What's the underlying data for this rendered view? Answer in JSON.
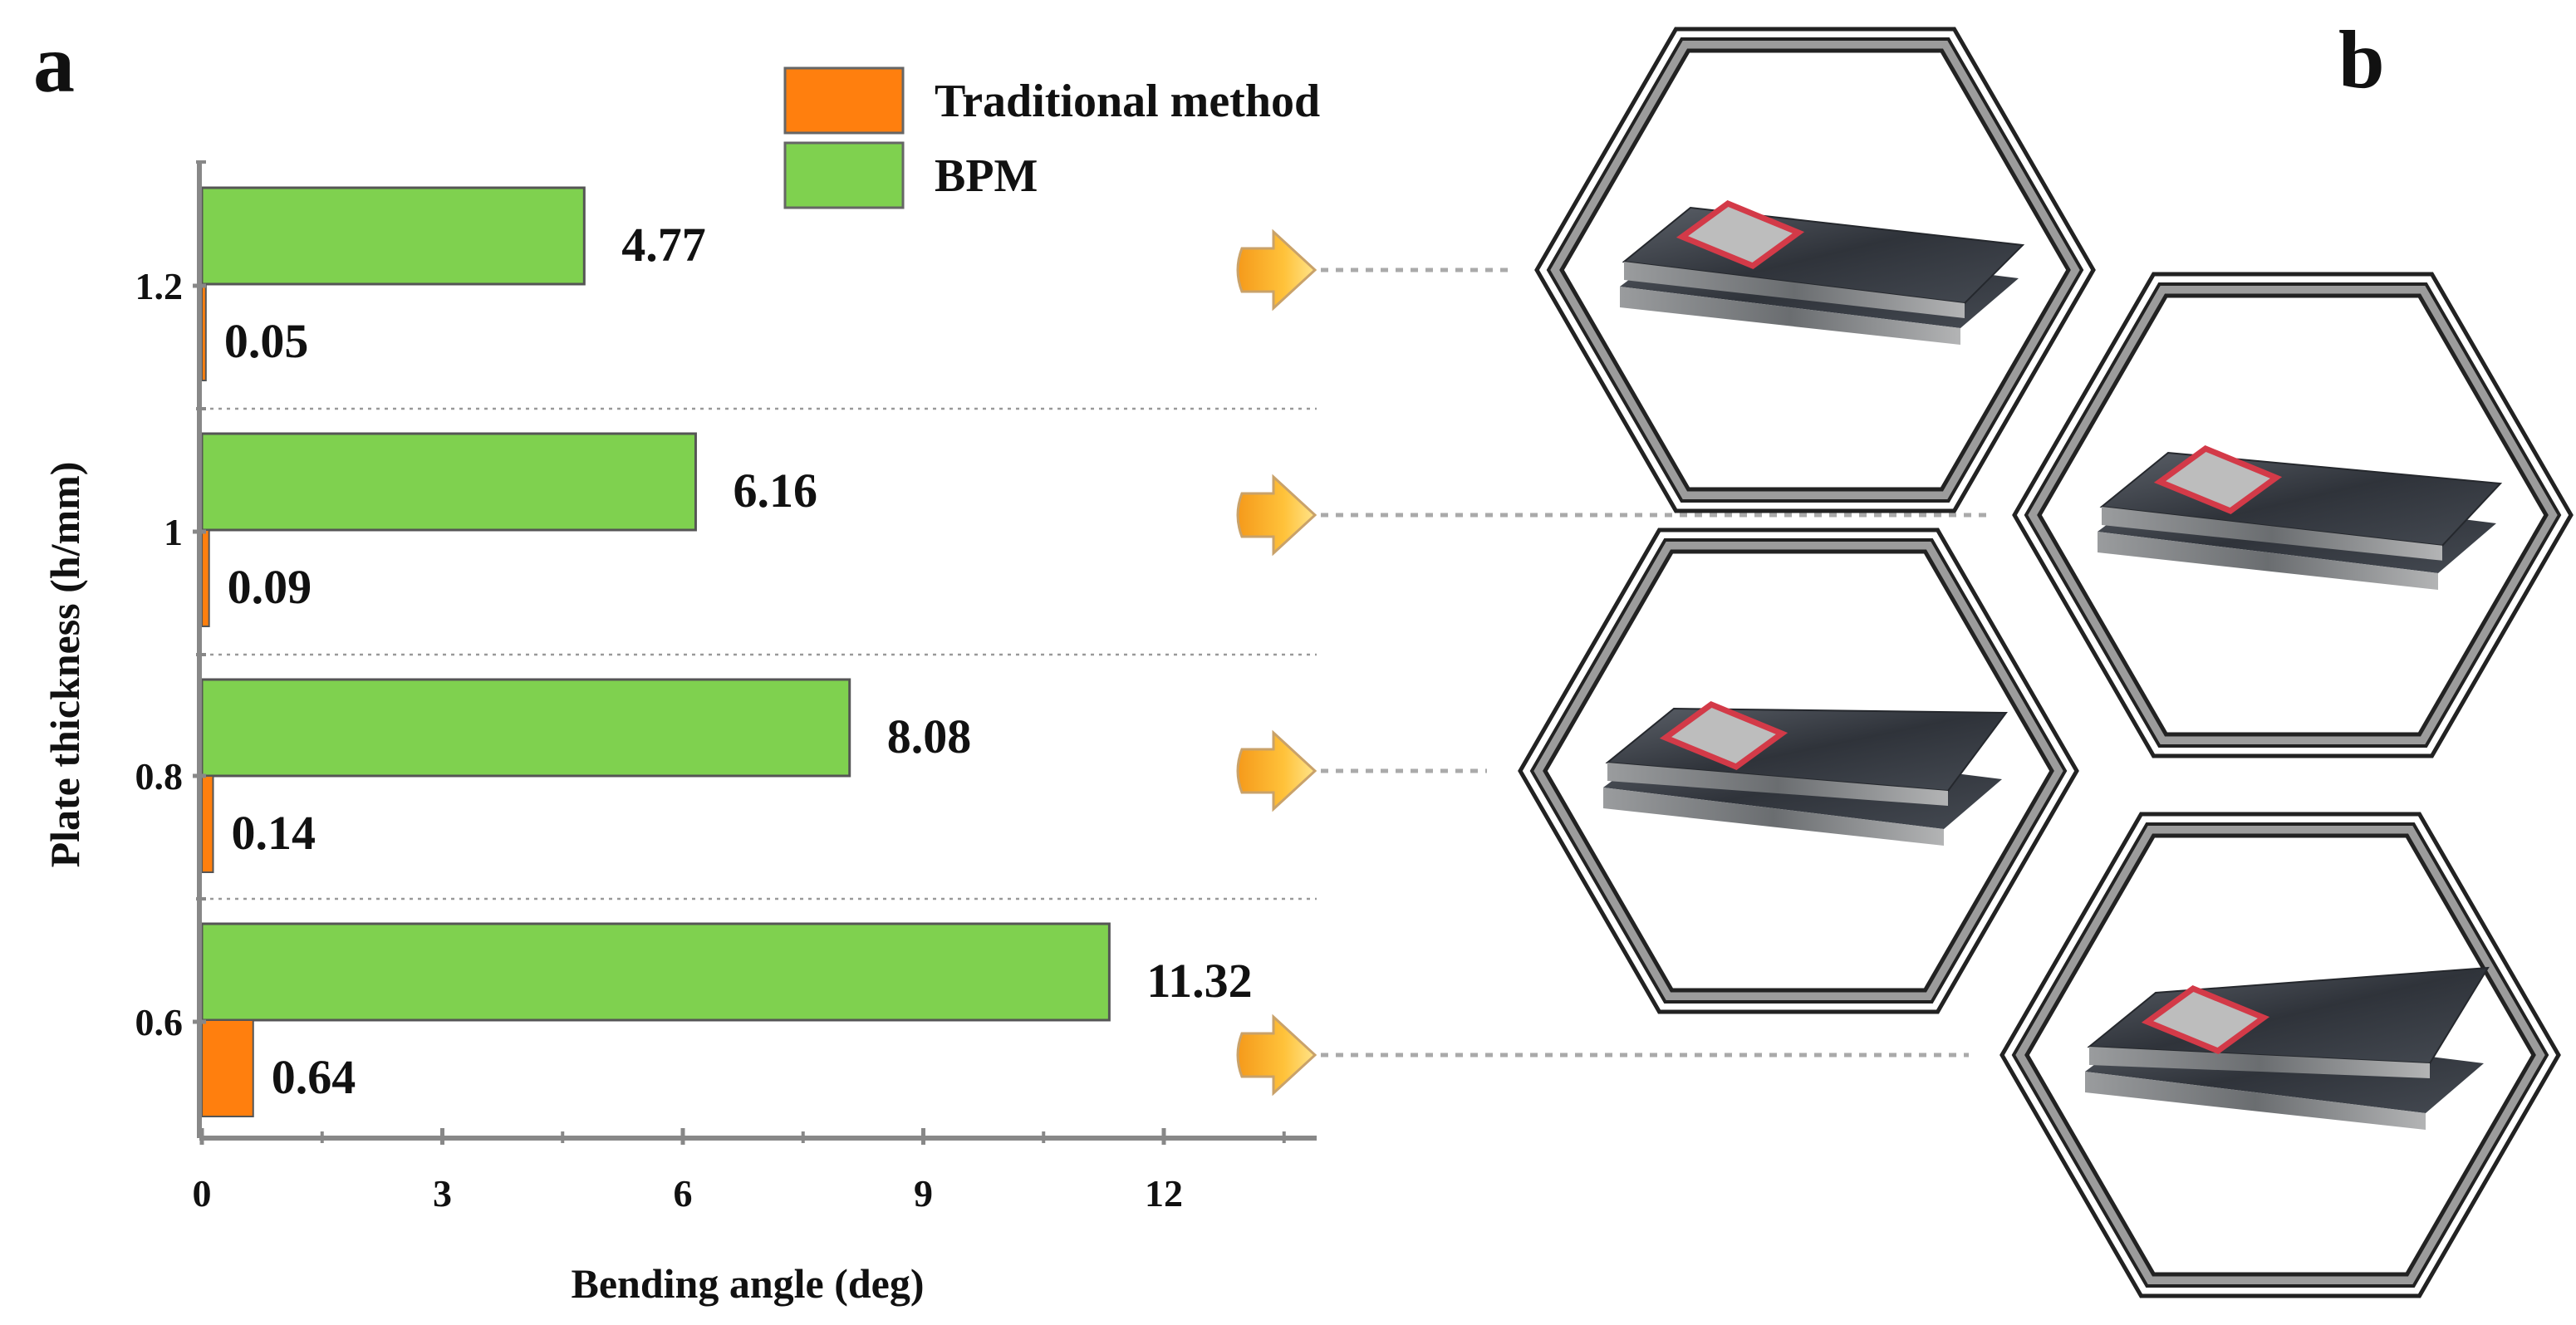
{
  "panels": {
    "left": "a",
    "right": "b"
  },
  "chart_data": {
    "type": "bar",
    "orientation": "horizontal",
    "categories": [
      "0.6",
      "0.8",
      "1",
      "1.2"
    ],
    "series": [
      {
        "name": "Traditional method",
        "color": "#ff7f0e",
        "values": [
          0.64,
          0.14,
          0.09,
          0.05
        ]
      },
      {
        "name": "BPM",
        "color": "#7fd14f",
        "values": [
          11.32,
          8.08,
          6.16,
          4.77
        ]
      }
    ],
    "value_labels": {
      "Traditional method": [
        "0.64",
        "0.14",
        "0.09",
        "0.05"
      ],
      "BPM": [
        "11.32",
        "8.08",
        "6.16",
        "4.77"
      ]
    },
    "xlabel": "Bending angle (deg)",
    "ylabel": "Plate thickness  (h/mm)",
    "xlim": [
      0,
      14
    ],
    "xticks": [
      0,
      3,
      6,
      9,
      12
    ],
    "xtick_labels": [
      "0",
      "3",
      "6",
      "9",
      "12"
    ],
    "legend": {
      "placement": "top",
      "entries": [
        "Traditional method",
        "BPM"
      ]
    },
    "separators": "dotted lines between categories"
  },
  "specimen_images": {
    "description_icons": [
      "arrow-pointer-icon"
    ],
    "items": [
      "specimen-1.2",
      "specimen-1",
      "specimen-0.8",
      "specimen-0.6"
    ]
  }
}
